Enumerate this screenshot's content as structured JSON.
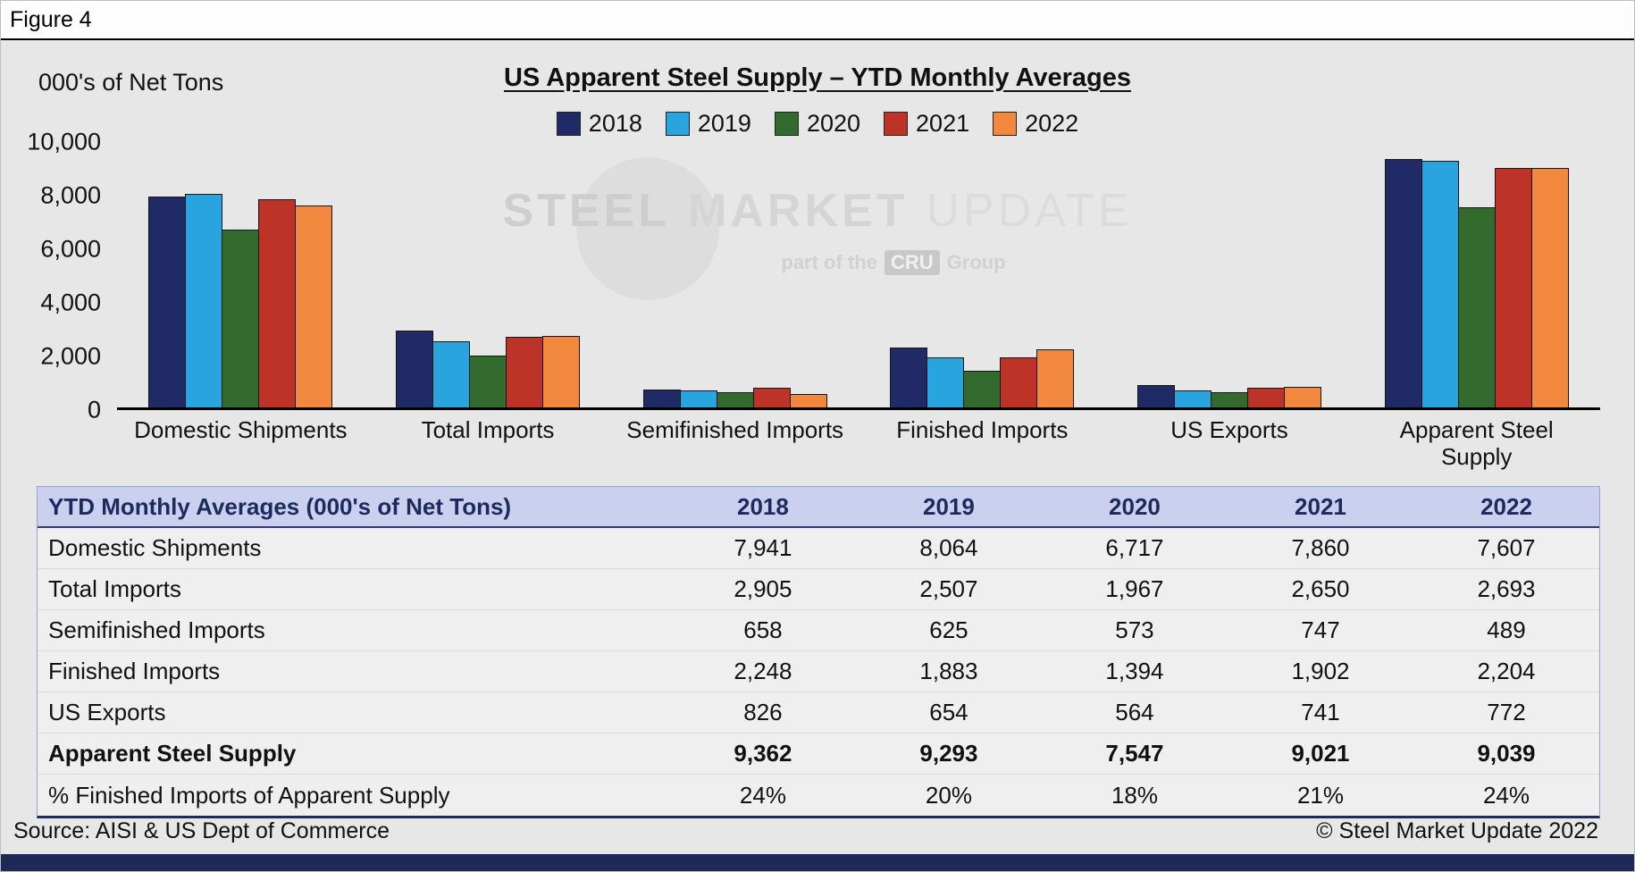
{
  "figure_label": "Figure 4",
  "chart": {
    "units_label": "000's of Net Tons",
    "title": "US Apparent Steel Supply – YTD Monthly Averages",
    "watermark": {
      "word1": "STEEL",
      "word2": "MARKET",
      "word3": "UPDATE",
      "tagline_prefix": "part of the",
      "tagline_box": "CRU",
      "tagline_suffix": "Group"
    }
  },
  "chart_data": {
    "type": "bar",
    "title": "US Apparent Steel Supply – YTD Monthly Averages",
    "ylabel": "000's of Net Tons",
    "ylim": [
      0,
      10000
    ],
    "yticks": [
      0,
      2000,
      4000,
      6000,
      8000,
      10000
    ],
    "ytick_labels": [
      "0",
      "2,000",
      "4,000",
      "6,000",
      "8,000",
      "10,000"
    ],
    "grid": false,
    "legend_position": "top",
    "categories": [
      "Domestic Shipments",
      "Total Imports",
      "Semifinished Imports",
      "Finished Imports",
      "US Exports",
      "Apparent Steel Supply"
    ],
    "series": [
      {
        "name": "2018",
        "color": "#1F2A66",
        "values": [
          7941,
          2905,
          658,
          2248,
          826,
          9362
        ]
      },
      {
        "name": "2019",
        "color": "#29A4DE",
        "values": [
          8064,
          2507,
          625,
          1883,
          654,
          9293
        ]
      },
      {
        "name": "2020",
        "color": "#336A2D",
        "values": [
          6717,
          1967,
          573,
          1394,
          564,
          7547
        ]
      },
      {
        "name": "2021",
        "color": "#BE3328",
        "values": [
          7860,
          2650,
          747,
          1902,
          741,
          9021
        ]
      },
      {
        "name": "2022",
        "color": "#F2873E",
        "values": [
          7607,
          2693,
          489,
          2204,
          772,
          9039
        ]
      }
    ]
  },
  "table": {
    "header_label": "YTD Monthly Averages (000's of Net Tons)",
    "years": [
      "2018",
      "2019",
      "2020",
      "2021",
      "2022"
    ],
    "rows": [
      {
        "label": "Domestic Shipments",
        "bold": false,
        "values": [
          "7,941",
          "8,064",
          "6,717",
          "7,860",
          "7,607"
        ]
      },
      {
        "label": "Total Imports",
        "bold": false,
        "values": [
          "2,905",
          "2,507",
          "1,967",
          "2,650",
          "2,693"
        ]
      },
      {
        "label": "Semifinished Imports",
        "bold": false,
        "values": [
          "658",
          "625",
          "573",
          "747",
          "489"
        ]
      },
      {
        "label": "Finished Imports",
        "bold": false,
        "values": [
          "2,248",
          "1,883",
          "1,394",
          "1,902",
          "2,204"
        ]
      },
      {
        "label": "US Exports",
        "bold": false,
        "values": [
          "826",
          "654",
          "564",
          "741",
          "772"
        ]
      },
      {
        "label": "Apparent Steel Supply",
        "bold": true,
        "values": [
          "9,362",
          "9,293",
          "7,547",
          "9,021",
          "9,039"
        ]
      },
      {
        "label": "% Finished Imports of Apparent Supply",
        "bold": false,
        "values": [
          "24%",
          "20%",
          "18%",
          "21%",
          "24%"
        ]
      }
    ]
  },
  "footer": {
    "source": "Source:  AISI & US Dept of Commerce",
    "copyright": "© Steel Market Update 2022"
  }
}
